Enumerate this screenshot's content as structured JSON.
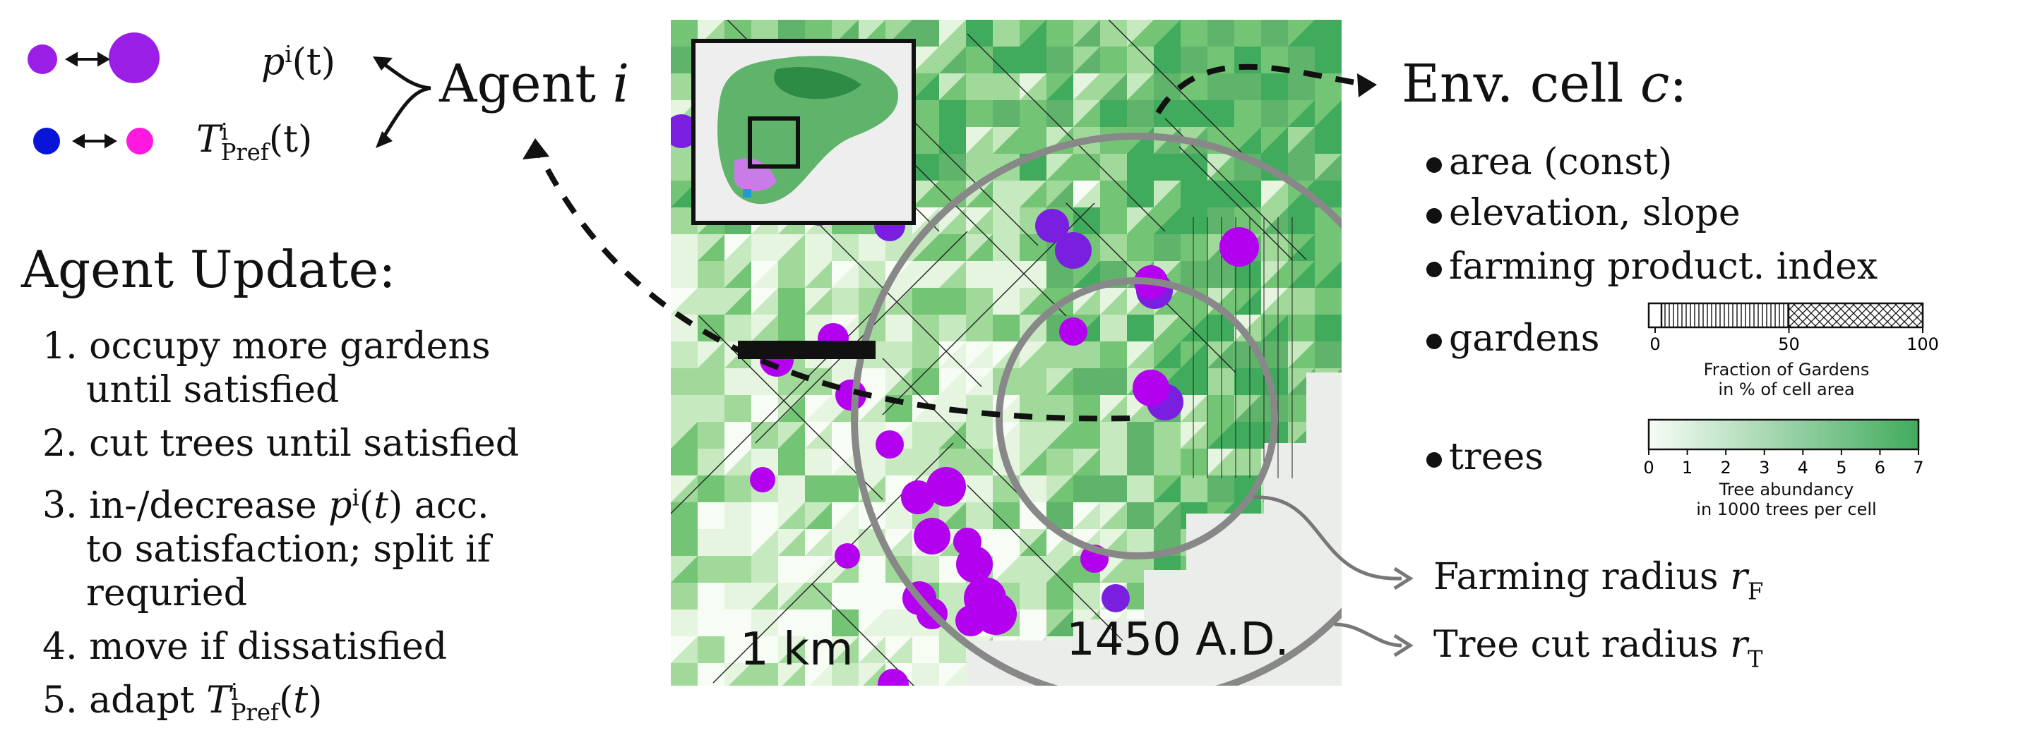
{
  "agent": {
    "label_prefix": "Agent",
    "label_var": "i",
    "p_label_sym": "p",
    "p_label_sup": "i",
    "p_label_arg": "(t)",
    "t_label_sym": "T",
    "t_label_sup": "i",
    "t_label_sub": "Pref",
    "t_label_arg": "(t)"
  },
  "update": {
    "title": "Agent Update:",
    "steps": [
      {
        "num": "1.",
        "lines": [
          "occupy more gardens",
          "until satisfied"
        ]
      },
      {
        "num": "2.",
        "lines": [
          "cut trees until satisfied"
        ]
      },
      {
        "num": "3.",
        "lines": [
          "in-/decrease pⁱ(t) acc.",
          "to satisfaction; split if",
          "requried"
        ]
      },
      {
        "num": "4.",
        "lines": [
          "move if dissatisfied"
        ]
      },
      {
        "num": "5.",
        "lines": [
          "adapt TⁱPref(t)"
        ]
      }
    ]
  },
  "env": {
    "title_prefix": "Env. cell",
    "title_var": "c",
    "title_suffix": ":",
    "items": [
      "area (const)",
      "elevation, slope",
      "farming product. index",
      "gardens",
      "trees"
    ]
  },
  "gardens_bar": {
    "ticks": [
      "0",
      "50",
      "100"
    ],
    "tick_values": [
      0,
      50,
      100
    ],
    "label_line1": "Fraction of Gardens",
    "label_line2": "in % of cell area"
  },
  "trees_bar": {
    "ticks": [
      "0",
      "1",
      "2",
      "3",
      "4",
      "5",
      "6",
      "7"
    ],
    "tick_values": [
      0,
      1,
      2,
      3,
      4,
      5,
      6,
      7
    ],
    "label_line1": "Tree abundancy",
    "label_line2": "in 1000 trees per cell",
    "color_low": "#f7fcf5",
    "color_high": "#41ab5d"
  },
  "map": {
    "scale_label": "1 km",
    "year_label": "1450 A.D.",
    "agent_color": "#b300ee",
    "agent_color_alt": "#7a1fe0",
    "farming_radius_label": "Farming radius",
    "farming_radius_sym": "r",
    "farming_radius_sub": "F",
    "treecut_radius_label": "Tree cut radius",
    "treecut_radius_sym": "r",
    "treecut_radius_sub": "T"
  },
  "colors": {
    "arrow": "#111111",
    "ring": "#888888",
    "size_dot": "#9b1ee6",
    "pref_low": "#0a14d8",
    "pref_high": "#ff18e0"
  }
}
